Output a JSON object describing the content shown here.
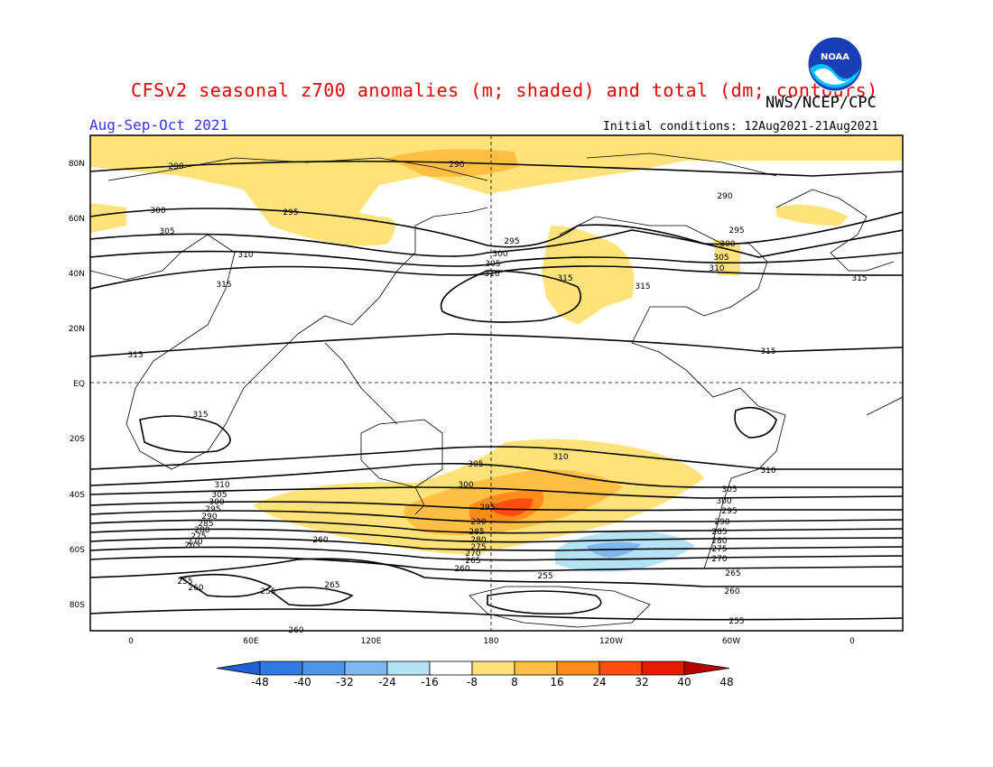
{
  "title": "CFSv2 seasonal z700 anomalies (m; shaded) and total (dm; contours)",
  "agency": "NWS/NCEP/CPC",
  "period": "Aug-Sep-Oct 2021",
  "initial_conditions": "Initial conditions: 12Aug2021-21Aug2021",
  "logo": {
    "text": "NOAA",
    "icon": "noaa-logo-icon"
  },
  "lat_labels": [
    "80N",
    "60N",
    "40N",
    "20N",
    "EQ",
    "20S",
    "40S",
    "60S",
    "80S"
  ],
  "lon_labels": [
    "0",
    "60E",
    "120E",
    "180",
    "120W",
    "60W",
    "0"
  ],
  "colorbar": {
    "ticks": [
      "-48",
      "-40",
      "-32",
      "-24",
      "-16",
      "-8",
      "8",
      "16",
      "24",
      "32",
      "40",
      "48"
    ],
    "colors": [
      "#1e5fd6",
      "#2f7ae0",
      "#4f95e8",
      "#7fb8f0",
      "#b4e2f6",
      "#ffffff",
      "#ffe27a",
      "#ffbf45",
      "#ff8c1a",
      "#ff4d0d",
      "#e51a00",
      "#b30000"
    ]
  },
  "contour_labels": [
    {
      "text": "290"
    },
    {
      "text": "300"
    },
    {
      "text": "305"
    },
    {
      "text": "295"
    },
    {
      "text": "310"
    },
    {
      "text": "315"
    },
    {
      "text": "315"
    },
    {
      "text": "315"
    },
    {
      "text": "290"
    },
    {
      "text": "295"
    },
    {
      "text": "300"
    },
    {
      "text": "305"
    },
    {
      "text": "310"
    },
    {
      "text": "315"
    },
    {
      "text": "290"
    },
    {
      "text": "295"
    },
    {
      "text": "300"
    },
    {
      "text": "305"
    },
    {
      "text": "310"
    },
    {
      "text": "315"
    },
    {
      "text": "315"
    },
    {
      "text": "315"
    },
    {
      "text": "310"
    },
    {
      "text": "305"
    },
    {
      "text": "310"
    },
    {
      "text": "305"
    },
    {
      "text": "300"
    },
    {
      "text": "295"
    },
    {
      "text": "290"
    },
    {
      "text": "285"
    },
    {
      "text": "280"
    },
    {
      "text": "275"
    },
    {
      "text": "270"
    },
    {
      "text": "265"
    },
    {
      "text": "260"
    },
    {
      "text": "255"
    },
    {
      "text": "260"
    },
    {
      "text": "255"
    },
    {
      "text": "265"
    },
    {
      "text": "300"
    },
    {
      "text": "295"
    },
    {
      "text": "290"
    },
    {
      "text": "285"
    },
    {
      "text": "280"
    },
    {
      "text": "275"
    },
    {
      "text": "270"
    },
    {
      "text": "265"
    },
    {
      "text": "260"
    },
    {
      "text": "255"
    },
    {
      "text": "305"
    },
    {
      "text": "300"
    },
    {
      "text": "295"
    },
    {
      "text": "290"
    },
    {
      "text": "285"
    },
    {
      "text": "280"
    },
    {
      "text": "275"
    },
    {
      "text": "270"
    },
    {
      "text": "265"
    },
    {
      "text": "260"
    },
    {
      "text": "255"
    },
    {
      "text": "310"
    },
    {
      "text": "260"
    }
  ]
}
